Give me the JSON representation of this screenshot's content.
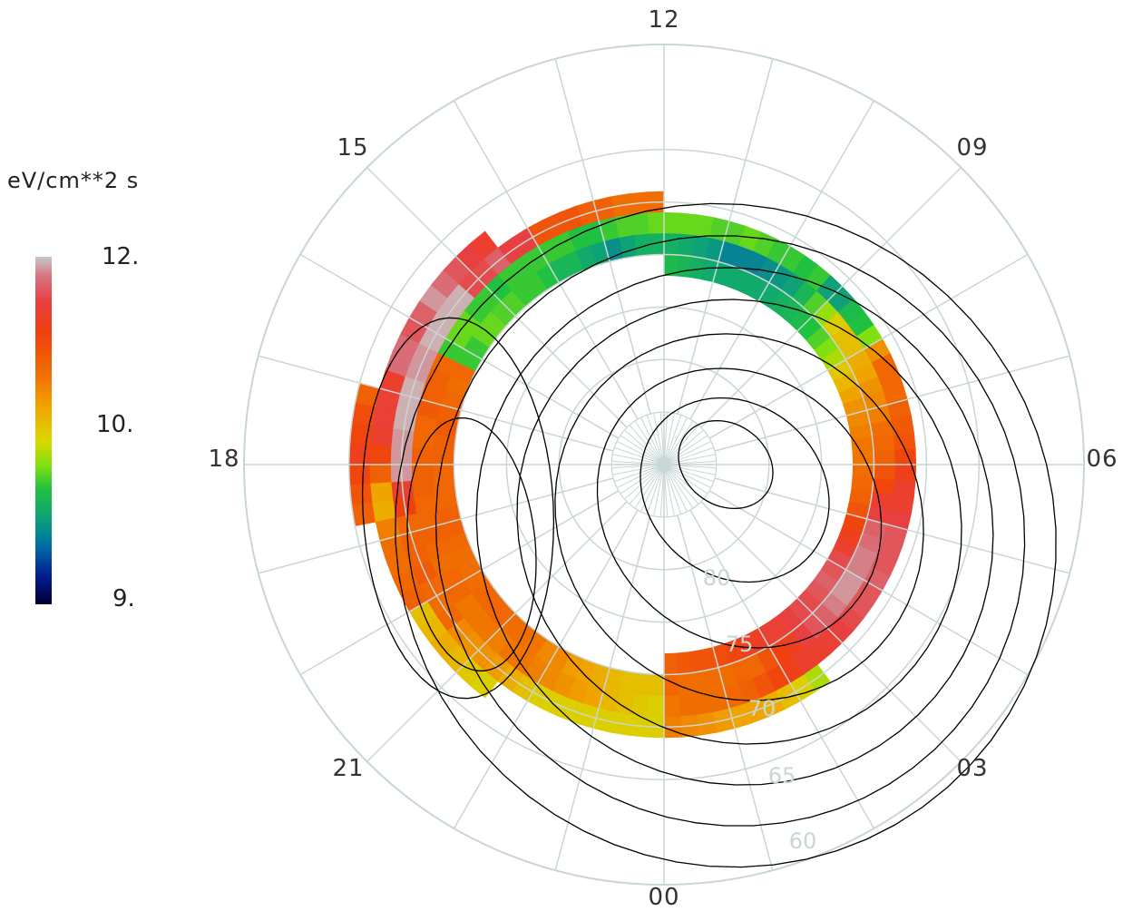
{
  "chart_data": {
    "type": "heatmap",
    "projection": "polar, magnetic local time vs magnetic latitude",
    "colorbar": {
      "unit_label": "eV/cm**2 s",
      "ticks": [
        "12.",
        "10.",
        "9."
      ],
      "range": [
        9,
        12
      ],
      "colormap": [
        "#000030",
        "#0020a0",
        "#0080a0",
        "#10a860",
        "#20c040",
        "#80e010",
        "#d8d800",
        "#f0a800",
        "#f07000",
        "#f04010",
        "#e84040",
        "#d8707a",
        "#c8c8c8"
      ]
    },
    "hour_labels": [
      "12",
      "15",
      "18",
      "21",
      "00",
      "03",
      "06",
      "09"
    ],
    "lat_labels": [
      "80",
      "75",
      "70",
      "65",
      "60"
    ],
    "grid": true,
    "colors": {
      "grid": "#c9d6d6",
      "contour": "#000000",
      "background": "#ffffff"
    },
    "rings": [
      {
        "lat": 61,
        "values": [
          null,
          null,
          null,
          null,
          null,
          null,
          null,
          null,
          null,
          null,
          null,
          null,
          null,
          null,
          null,
          null,
          null,
          null,
          null,
          null,
          null,
          null,
          null,
          null,
          null,
          null,
          null,
          null,
          null,
          null,
          null,
          null,
          null,
          null,
          null,
          null,
          null,
          null,
          null,
          null,
          null,
          null,
          null,
          null,
          null,
          null,
          null,
          null,
          null,
          null,
          null,
          null,
          null,
          null,
          null,
          null,
          null,
          null,
          null,
          null,
          null,
          null,
          null,
          null,
          null,
          null,
          null,
          null,
          11.1,
          11.25,
          11.3,
          11.4,
          11.3,
          11.2,
          11.1,
          null,
          null,
          null,
          null,
          null,
          null,
          null,
          null,
          null,
          null,
          null,
          null,
          null,
          null,
          null,
          null,
          null,
          null,
          null,
          null,
          null
        ]
      },
      {
        "lat": 63,
        "values": [
          null,
          null,
          null,
          null,
          null,
          null,
          null,
          null,
          null,
          null,
          null,
          null,
          null,
          null,
          null,
          null,
          null,
          null,
          null,
          null,
          null,
          null,
          null,
          null,
          null,
          null,
          null,
          null,
          null,
          null,
          null,
          null,
          null,
          null,
          null,
          null,
          null,
          null,
          null,
          null,
          null,
          null,
          null,
          null,
          null,
          null,
          null,
          null,
          null,
          null,
          null,
          null,
          null,
          null,
          null,
          null,
          null,
          null,
          11.5,
          11.6,
          11.7,
          11.8,
          11.9,
          11.75,
          11.7,
          11.8,
          11.8,
          11.5,
          11.55,
          11.55,
          11.5,
          11.3,
          11.1,
          10.7,
          10.65,
          10.9,
          11.0,
          11.0,
          11.05,
          11.1,
          10.55,
          10.6,
          10.65,
          10.6,
          10.5,
          10.45,
          null,
          null,
          null,
          null,
          null,
          null,
          null,
          null,
          null,
          null
        ]
      },
      {
        "lat": 65,
        "values": [
          10.9,
          10.85,
          10.8,
          10.75,
          10.7,
          10.7,
          10.65,
          10.55,
          10.45,
          10.3,
          null,
          null,
          null,
          null,
          null,
          null,
          null,
          null,
          null,
          null,
          null,
          null,
          null,
          null,
          null,
          null,
          null,
          null,
          null,
          null,
          null,
          null,
          null,
          null,
          null,
          null,
          null,
          null,
          null,
          null,
          null,
          null,
          null,
          null,
          null,
          null,
          null,
          null,
          11.0,
          11.0,
          11.0,
          11.1,
          11.1,
          11.2,
          11.2,
          11.2,
          11.6,
          11.6,
          11.75,
          11.65,
          11.65,
          11.95,
          11.95,
          11.95,
          11.95,
          11.9,
          11.9,
          11.95,
          11.95,
          11.95,
          11.9,
          11.9,
          11.9,
          11.5,
          11.35,
          11.05,
          11.1,
          11.1,
          11.15,
          11.05,
          11.0,
          11.05,
          10.85,
          10.8,
          10.8,
          10.75,
          10.65,
          10.55,
          10.45,
          10.45,
          10.45,
          10.45,
          10.45,
          10.45,
          10.45,
          10.45
        ]
      },
      {
        "lat": 67,
        "values": [
          10.95,
          11.0,
          11.0,
          11.0,
          11.05,
          11.1,
          11.2,
          11.3,
          11.4,
          11.5,
          11.5,
          11.55,
          11.6,
          11.65,
          11.7,
          11.7,
          11.75,
          11.7,
          11.7,
          11.7,
          11.6,
          11.5,
          11.5,
          11.4,
          11.3,
          11.2,
          11.15,
          11.1,
          11.05,
          11.05,
          11.05,
          10.8,
          10.2,
          10.0,
          9.95,
          9.75,
          9.75,
          10.05,
          10.0,
          10.05,
          10.05,
          10.1,
          10.15,
          10.1,
          10.1,
          10.15,
          10.15,
          10.15,
          10.15,
          10.1,
          10.1,
          10.05,
          10.0,
          10.0,
          10.05,
          10.05,
          10.05,
          10.05,
          10.05,
          10.0,
          10.05,
          10.05,
          10.15,
          10.15,
          10.05,
          11.05,
          11.1,
          11.1,
          11.15,
          11.05,
          11.05,
          11.1,
          11.1,
          11.1,
          11.05,
          11.05,
          11.1,
          11.05,
          11.0,
          11.05,
          11.05,
          10.95,
          10.95,
          10.95,
          10.9,
          10.95,
          10.95,
          10.9,
          10.85,
          10.8,
          10.75,
          10.7,
          10.6,
          10.55,
          10.5,
          10.45
        ]
      },
      {
        "lat": 69,
        "values": [
          11.05,
          11.0,
          11.0,
          11.0,
          11.0,
          11.05,
          11.05,
          11.2,
          11.35,
          11.45,
          11.6,
          11.7,
          11.75,
          11.85,
          11.9,
          11.9,
          11.85,
          11.85,
          11.8,
          11.75,
          11.6,
          11.5,
          11.3,
          11.2,
          11.1,
          11.05,
          11.0,
          10.9,
          10.85,
          10.8,
          10.7,
          10.65,
          10.55,
          10.55,
          10.45,
          10.25,
          10.1,
          9.9,
          9.75,
          9.7,
          9.65,
          9.6,
          9.6,
          9.6,
          9.7,
          9.75,
          9.8,
          9.85,
          9.85,
          9.85,
          9.75,
          9.65,
          9.75,
          9.8,
          9.9,
          9.9,
          10.0,
          10.05,
          10.05,
          10.1,
          10.1,
          10.15,
          10.15,
          10.05,
          10.05,
          11.05,
          11.0,
          11.05,
          11.1,
          11.15,
          11.1,
          11.1,
          11.05,
          11.05,
          11.05,
          11.1,
          11.1,
          11.05,
          11.0,
          11.0,
          11.0,
          11.05,
          11.05,
          11.05,
          11.0,
          11.0,
          10.95,
          10.85,
          10.85,
          10.75,
          10.7,
          10.65,
          10.6,
          10.55,
          10.55,
          10.55
        ]
      },
      {
        "lat": 71,
        "values": [
          11.1,
          11.15,
          11.2,
          11.2,
          11.25,
          11.3,
          11.4,
          11.45,
          11.55,
          11.55,
          11.6,
          11.65,
          11.65,
          11.7,
          11.75,
          11.7,
          11.65,
          11.5,
          11.4,
          11.3,
          11.2,
          11.1,
          11.05,
          11.0,
          10.95,
          10.95,
          10.9,
          10.85,
          10.8,
          10.7,
          10.6,
          10.5,
          10.3,
          10.2,
          10.1,
          10.0,
          9.95,
          9.9,
          9.85,
          9.8,
          9.8,
          9.8,
          9.8,
          9.8,
          9.8,
          9.85,
          9.9,
          9.95,
          null,
          null,
          null,
          null,
          null,
          null,
          null,
          null,
          null,
          null,
          null,
          null,
          null,
          null,
          null,
          null,
          null,
          null,
          null,
          null,
          null,
          null,
          null,
          null,
          null,
          null,
          null,
          null,
          null,
          null,
          null,
          null,
          null,
          null,
          null,
          null,
          null,
          null,
          null,
          null,
          null,
          null,
          null,
          null,
          null,
          null,
          null,
          null
        ]
      }
    ]
  }
}
